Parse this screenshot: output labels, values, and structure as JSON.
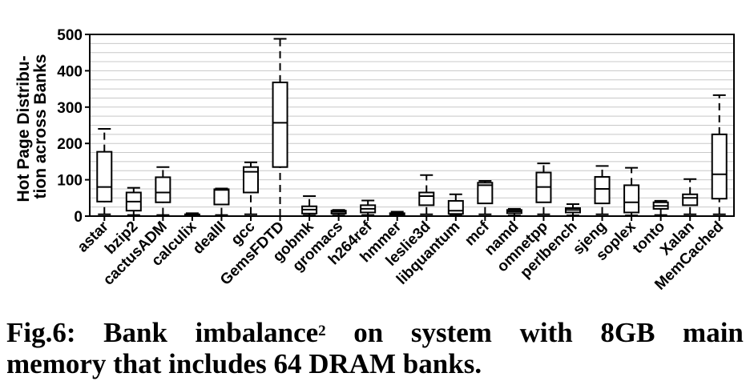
{
  "chart_data": {
    "type": "box",
    "ylabel": [
      "Hot Page Distribu-",
      "tion across Banks"
    ],
    "ylim": [
      0,
      500
    ],
    "yticks": [
      0,
      100,
      200,
      300,
      400,
      500
    ],
    "grid": "horizontal",
    "categories": [
      "astar",
      "bzip2",
      "cactusADM",
      "calculix",
      "dealII",
      "gcc",
      "GemsFDTD",
      "gobmk",
      "gromacs",
      "h264ref",
      "hmmer",
      "leslie3d",
      "libquantum",
      "mcf",
      "namd",
      "omnetpp",
      "perlbench",
      "sjeng",
      "soplex",
      "tonto",
      "Xalan",
      "MemCached"
    ],
    "boxes": [
      {
        "min": 5,
        "q1": 40,
        "median": 80,
        "q3": 177,
        "max": 240
      },
      {
        "min": 3,
        "q1": 15,
        "median": 40,
        "q3": 65,
        "max": 78
      },
      {
        "min": 3,
        "q1": 38,
        "median": 65,
        "q3": 107,
        "max": 135
      },
      {
        "min": 0,
        "q1": 1,
        "median": 3,
        "q3": 5,
        "max": 8
      },
      {
        "min": 3,
        "q1": 32,
        "median": 72,
        "q3": 74,
        "max": 76
      },
      {
        "min": 5,
        "q1": 65,
        "median": 122,
        "q3": 135,
        "max": 148
      },
      {
        "min": 0,
        "q1": 135,
        "median": 257,
        "q3": 368,
        "max": 488
      },
      {
        "min": 2,
        "q1": 7,
        "median": 18,
        "q3": 27,
        "max": 55
      },
      {
        "min": 2,
        "q1": 7,
        "median": 12,
        "q3": 15,
        "max": 17
      },
      {
        "min": 3,
        "q1": 10,
        "median": 20,
        "q3": 30,
        "max": 43
      },
      {
        "min": 0,
        "q1": 2,
        "median": 5,
        "q3": 8,
        "max": 12
      },
      {
        "min": 5,
        "q1": 30,
        "median": 55,
        "q3": 65,
        "max": 113
      },
      {
        "min": 2,
        "q1": 6,
        "median": 15,
        "q3": 42,
        "max": 60
      },
      {
        "min": 5,
        "q1": 35,
        "median": 85,
        "q3": 92,
        "max": 97
      },
      {
        "min": 2,
        "q1": 8,
        "median": 13,
        "q3": 17,
        "max": 20
      },
      {
        "min": 5,
        "q1": 38,
        "median": 80,
        "q3": 120,
        "max": 145
      },
      {
        "min": 2,
        "q1": 10,
        "median": 17,
        "q3": 22,
        "max": 33
      },
      {
        "min": 5,
        "q1": 35,
        "median": 75,
        "q3": 108,
        "max": 138
      },
      {
        "min": 2,
        "q1": 10,
        "median": 38,
        "q3": 85,
        "max": 133
      },
      {
        "min": 3,
        "q1": 20,
        "median": 28,
        "q3": 38,
        "max": 42
      },
      {
        "min": 5,
        "q1": 30,
        "median": 50,
        "q3": 60,
        "max": 102
      },
      {
        "min": 5,
        "q1": 48,
        "median": 115,
        "q3": 225,
        "max": 333
      }
    ]
  },
  "caption": {
    "words": [
      "Fig.6:",
      "Bank",
      "imbalance",
      "on",
      "system",
      "with",
      "8GB",
      "main"
    ],
    "footnote": "2",
    "line2": "memory that includes 64 DRAM banks."
  }
}
